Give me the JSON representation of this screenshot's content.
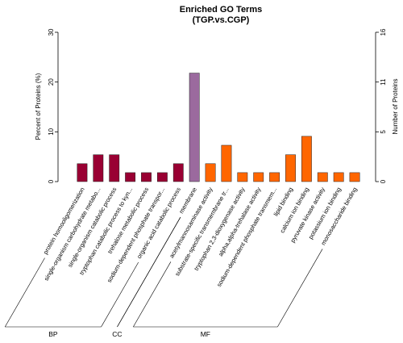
{
  "chart_data": {
    "type": "bar",
    "title": "Enriched GO Terms",
    "subtitle": "(TGP.vs.CGP)",
    "ylabel_left": "Percent of Proteins (%)",
    "ylabel_right": "Number of Proteins",
    "ylim_left": [
      0,
      30
    ],
    "yticks_left": [
      "0",
      "10",
      "20",
      "30"
    ],
    "ylim_right": [
      0,
      16
    ],
    "yticks_right": [
      "0",
      "5",
      "11",
      "16"
    ],
    "grid": false,
    "categories": [
      "protein homooligomerization",
      "single-organism carbohydrate metabo...",
      "single-organism catabolic process",
      "tryptophan catabolic process to kyn...",
      "trehalose metabolic process",
      "sodium-dependent phosphate transpor...",
      "organic acid catabolic process",
      "membrane",
      "acetylmannosaminase activity",
      "substrate-specific transmembrane tr...",
      "tryptophan 2,3-dioxygenase activity",
      "alpha,alpha-trehalase activity",
      "sodium-dependent phosphate transmem...",
      "lipid binding",
      "calcium ion binding",
      "pyruvate kinase activity",
      "potassium ion binding",
      "monosaccharide binding"
    ],
    "values": [
      3.6,
      5.4,
      5.4,
      1.8,
      1.8,
      1.8,
      3.6,
      21.8,
      3.6,
      7.3,
      1.8,
      1.8,
      1.8,
      5.4,
      9.1,
      1.8,
      1.8,
      1.8
    ],
    "bar_group": [
      "BP",
      "BP",
      "BP",
      "BP",
      "BP",
      "BP",
      "BP",
      "CC",
      "MF",
      "MF",
      "MF",
      "MF",
      "MF",
      "MF",
      "MF",
      "MF",
      "MF",
      "MF"
    ],
    "groups": [
      {
        "name": "BP",
        "color": "#990033"
      },
      {
        "name": "CC",
        "color": "#9B6A9E"
      },
      {
        "name": "MF",
        "color": "#FF6600"
      }
    ]
  }
}
